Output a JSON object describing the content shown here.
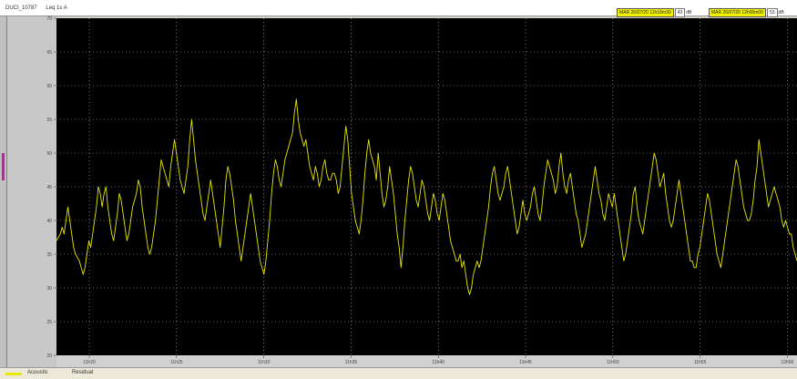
{
  "window": {
    "channel_id": "DUCI_10787",
    "channel_name": "Leq 1s  A"
  },
  "readouts": [
    {
      "timestamp": "MAR 26/07/20 11h18m30",
      "value": "43",
      "unit": "dB"
    },
    {
      "timestamp": "MAR 26/07/20 12h00m00",
      "value": "53",
      "unit": "dB"
    }
  ],
  "legend": {
    "label_1": "Acoustic",
    "label_2": "Residual"
  },
  "chart_data": {
    "type": "line",
    "title": "",
    "xlabel": "",
    "ylabel": "",
    "background": "#000000",
    "line_color": "#e8e800",
    "grid": true,
    "y_ticks": [
      20,
      25,
      30,
      35,
      40,
      45,
      50,
      55,
      60,
      65,
      70
    ],
    "ylim": [
      20,
      70
    ],
    "x_tick_labels": [
      "11h20",
      "11h25",
      "11h30",
      "11h35",
      "11h40",
      "11h45",
      "11h50",
      "11h55",
      "12h00"
    ],
    "x_start_label": "11h18m30",
    "x_end_label": "12h00m00",
    "series": [
      {
        "values": [
          37,
          37.5,
          38,
          39,
          38,
          40,
          42,
          40,
          38,
          36,
          35,
          34.5,
          34,
          33,
          32,
          33,
          35,
          37,
          36,
          38,
          40,
          42,
          45,
          44,
          42,
          44,
          45,
          42,
          40,
          38,
          37,
          39,
          41,
          44,
          43,
          41,
          39,
          37,
          38,
          40,
          42,
          43,
          44,
          46,
          45,
          42,
          40,
          38,
          36,
          35,
          36,
          38,
          40,
          43,
          46,
          49,
          48,
          47,
          46,
          45,
          48,
          50,
          52,
          50,
          48,
          46,
          45,
          44,
          46,
          48,
          52,
          55,
          52,
          49,
          47,
          45,
          43,
          41,
          40,
          42,
          44,
          46,
          44,
          42,
          40,
          38,
          36,
          39,
          42,
          46,
          48,
          47,
          45,
          43,
          40,
          38,
          36,
          34,
          36,
          38,
          40,
          42,
          44,
          42,
          40,
          38,
          36,
          34,
          33,
          32,
          34,
          37,
          40,
          44,
          47,
          49,
          48,
          46,
          45,
          47,
          49,
          50,
          51,
          52,
          53,
          56,
          58,
          55,
          53,
          52,
          51,
          52,
          50,
          48,
          47,
          46,
          48,
          47,
          45,
          46,
          48,
          49,
          47,
          46,
          46,
          47,
          47,
          46,
          44,
          45,
          48,
          51,
          54,
          52,
          48,
          44,
          42,
          40,
          39,
          38,
          40,
          43,
          47,
          50,
          52,
          50,
          49,
          48,
          46,
          50,
          47,
          44,
          42,
          43,
          45,
          48,
          46,
          44,
          41,
          38,
          36,
          33,
          36,
          40,
          43,
          46,
          48,
          47,
          45,
          43,
          42,
          44,
          46,
          45,
          43,
          41,
          40,
          42,
          44,
          43,
          41,
          40,
          42,
          44,
          43,
          41,
          39,
          37,
          36,
          35,
          34,
          34,
          35,
          33,
          34,
          32,
          30,
          29,
          30,
          32,
          33,
          34,
          33,
          34,
          36,
          38,
          40,
          42,
          45,
          47,
          48,
          46,
          44,
          43,
          44,
          45,
          47,
          48,
          46,
          44,
          42,
          40,
          38,
          39,
          41,
          43,
          41,
          40,
          41,
          42,
          44,
          45,
          43,
          41,
          40,
          42,
          45,
          47,
          49,
          48,
          47,
          46,
          44,
          45,
          48,
          50,
          47,
          45,
          44,
          46,
          47,
          45,
          43,
          41,
          40,
          38,
          36,
          37,
          38,
          40,
          42,
          44,
          46,
          48,
          46,
          44,
          43,
          41,
          40,
          42,
          44,
          43,
          42,
          44,
          42,
          40,
          38,
          36,
          34,
          35,
          37,
          39,
          41,
          44,
          45,
          42,
          40,
          39,
          38,
          40,
          42,
          44,
          46,
          48,
          50,
          49,
          47,
          45,
          46,
          47,
          44,
          42,
          40,
          39,
          40,
          42,
          44,
          46,
          44,
          42,
          40,
          38,
          36,
          34,
          34,
          33,
          33,
          35,
          36,
          38,
          40,
          42,
          44,
          43,
          41,
          39,
          37,
          35,
          34,
          33,
          35,
          37,
          39,
          41,
          43,
          45,
          47,
          49,
          48,
          46,
          44,
          42,
          41,
          40,
          40,
          41,
          43,
          46,
          48,
          52,
          50,
          48,
          46,
          44,
          42,
          43,
          44,
          45,
          44,
          43,
          42,
          40,
          39,
          40,
          39,
          38,
          38,
          36,
          35,
          34
        ]
      }
    ]
  }
}
